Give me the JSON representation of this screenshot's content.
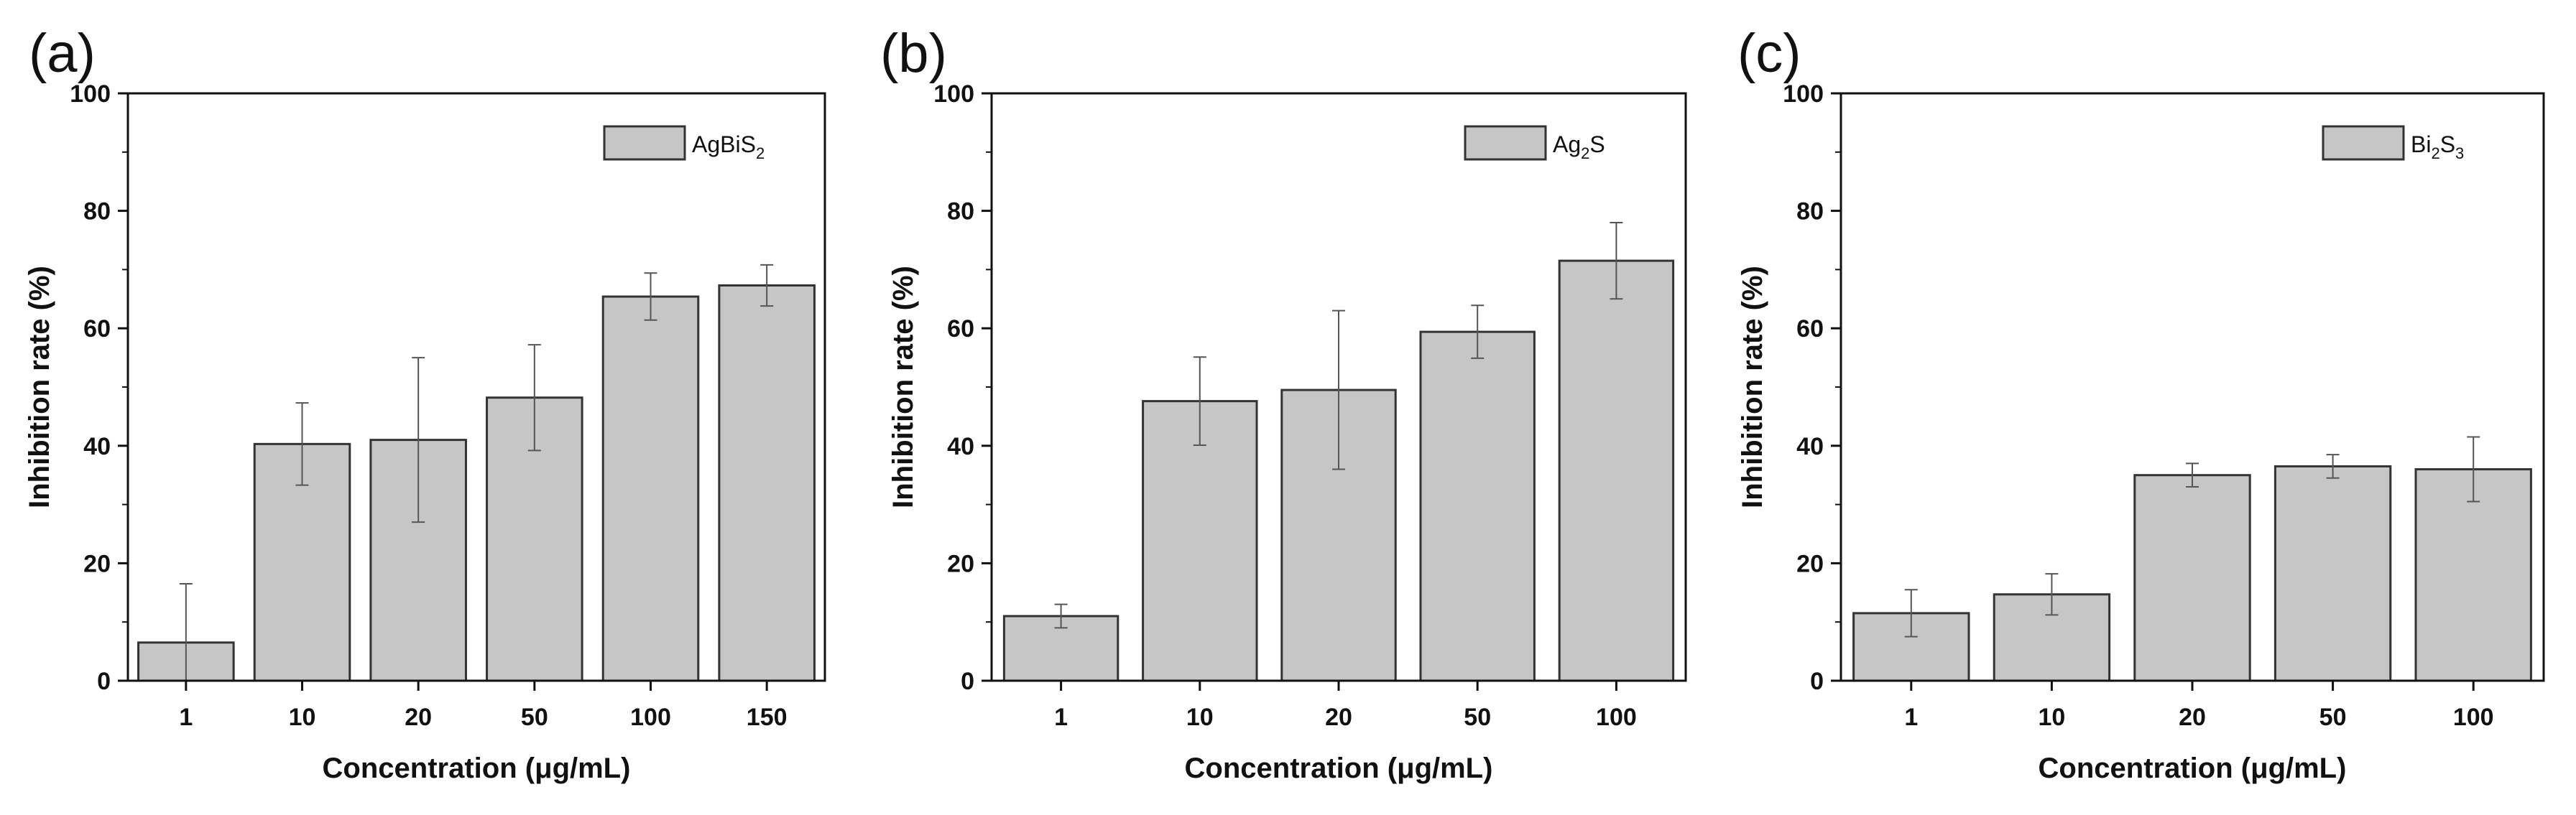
{
  "chart_data": [
    {
      "type": "bar",
      "panel_label": "(a)",
      "categories": [
        "1",
        "10",
        "20",
        "50",
        "100",
        "150"
      ],
      "values": [
        6.5,
        40.3,
        41,
        48.2,
        65.4,
        67.3
      ],
      "errors": [
        10,
        7,
        14,
        9,
        4,
        3.5
      ],
      "xlabel": "Concentration (μg/mL)",
      "ylabel": "Inhibition rate (%)",
      "ylim": [
        0,
        100
      ],
      "yticks": [
        "0",
        "20",
        "40",
        "60",
        "80",
        "100"
      ],
      "legend": {
        "base": "AgBiS",
        "sub": "2",
        "placement": "top-right"
      },
      "bar_color": "#c6c6c6"
    },
    {
      "type": "bar",
      "panel_label": "(b)",
      "categories": [
        "1",
        "10",
        "20",
        "50",
        "100"
      ],
      "values": [
        11,
        47.6,
        49.5,
        59.4,
        71.5
      ],
      "errors": [
        2,
        7.5,
        13.5,
        4.5,
        6.5
      ],
      "xlabel": "Concentration (μg/mL)",
      "ylabel": "Inhibition rate (%)",
      "ylim": [
        0,
        100
      ],
      "yticks": [
        "0",
        "20",
        "40",
        "60",
        "80",
        "100"
      ],
      "legend": {
        "base": "Ag",
        "sub": "2",
        "tail": "S",
        "placement": "top-right"
      },
      "bar_color": "#c6c6c6"
    },
    {
      "type": "bar",
      "panel_label": "(c)",
      "categories": [
        "1",
        "10",
        "20",
        "50",
        "100"
      ],
      "values": [
        11.5,
        14.7,
        35,
        36.5,
        36
      ],
      "errors": [
        4,
        3.5,
        2,
        2,
        5.5
      ],
      "xlabel": "Concentration (μg/mL)",
      "ylabel": "Inhibition rate (%)",
      "ylim": [
        0,
        100
      ],
      "yticks": [
        "0",
        "20",
        "40",
        "60",
        "80",
        "100"
      ],
      "legend": {
        "base": "Bi",
        "sub": "2",
        "mid": "S",
        "sub2": "3",
        "placement": "top-right"
      },
      "bar_color": "#c6c6c6"
    }
  ]
}
